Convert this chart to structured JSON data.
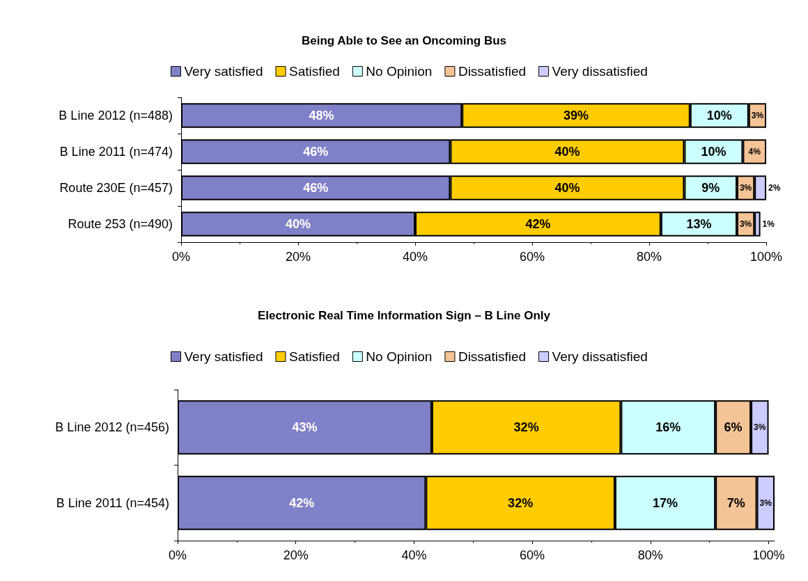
{
  "chart_data": [
    {
      "type": "bar",
      "orientation": "horizontal",
      "stacked": true,
      "title": "Being Able to See an Oncoming Bus",
      "legend": "top",
      "categories": [
        "B Line 2012 (n=488)",
        "B Line 2011 (n=474)",
        "Route 230E (n=457)",
        "Route 253 (n=490)"
      ],
      "xlim": [
        0,
        100
      ],
      "xticks": [
        {
          "value": 0,
          "label": "0%"
        },
        {
          "value": 20,
          "label": "20%"
        },
        {
          "value": 40,
          "label": "40%"
        },
        {
          "value": 60,
          "label": "60%"
        },
        {
          "value": 80,
          "label": "80%"
        },
        {
          "value": 100,
          "label": "100%"
        }
      ],
      "grid": false,
      "series": [
        {
          "name": "Very satisfied",
          "color": "#8080c8",
          "values": [
            48,
            46,
            46,
            40
          ],
          "value_labels": [
            "48%",
            "46%",
            "46%",
            "40%"
          ]
        },
        {
          "name": "Satisfied",
          "color": "#ffcc00",
          "values": [
            39,
            40,
            40,
            42
          ],
          "value_labels": [
            "39%",
            "40%",
            "40%",
            "42%"
          ]
        },
        {
          "name": "No Opinion",
          "color": "#ccffff",
          "values": [
            10,
            10,
            9,
            13
          ],
          "value_labels": [
            "10%",
            "10%",
            "9%",
            "13%"
          ]
        },
        {
          "name": "Dissatisfied",
          "color": "#f5c496",
          "values": [
            3,
            4,
            3,
            3
          ],
          "value_labels": [
            "3%",
            "4%",
            "3%",
            "3%"
          ]
        },
        {
          "name": "Very dissatisfied",
          "color": "#ccccff",
          "values": [
            null,
            null,
            2,
            1
          ],
          "value_labels": [
            null,
            null,
            "2%",
            "1%"
          ]
        }
      ]
    },
    {
      "type": "bar",
      "orientation": "horizontal",
      "stacked": true,
      "title": "Electronic Real Time Information Sign – B Line Only",
      "legend": "top",
      "categories": [
        "B Line 2012 (n=456)",
        "B Line 2011 (n=454)"
      ],
      "xlim": [
        0,
        101
      ],
      "xticks": [
        {
          "value": 0,
          "label": "0%"
        },
        {
          "value": 20,
          "label": "20%"
        },
        {
          "value": 40,
          "label": "40%"
        },
        {
          "value": 60,
          "label": "60%"
        },
        {
          "value": 80,
          "label": "80%"
        },
        {
          "value": 100,
          "label": "100%"
        }
      ],
      "grid": false,
      "series": [
        {
          "name": "Very satisfied",
          "color": "#8080c8",
          "values": [
            43,
            42
          ],
          "value_labels": [
            "43%",
            "42%"
          ]
        },
        {
          "name": "Satisfied",
          "color": "#ffcc00",
          "values": [
            32,
            32
          ],
          "value_labels": [
            "32%",
            "32%"
          ]
        },
        {
          "name": "No Opinion",
          "color": "#ccffff",
          "values": [
            16,
            17
          ],
          "value_labels": [
            "16%",
            "17%"
          ]
        },
        {
          "name": "Dissatisfied",
          "color": "#f5c496",
          "values": [
            6,
            7
          ],
          "value_labels": [
            "6%",
            "7%"
          ]
        },
        {
          "name": "Very dissatisfied",
          "color": "#ccccff",
          "values": [
            3,
            3
          ],
          "value_labels": [
            "3%",
            "3%"
          ]
        }
      ]
    }
  ]
}
